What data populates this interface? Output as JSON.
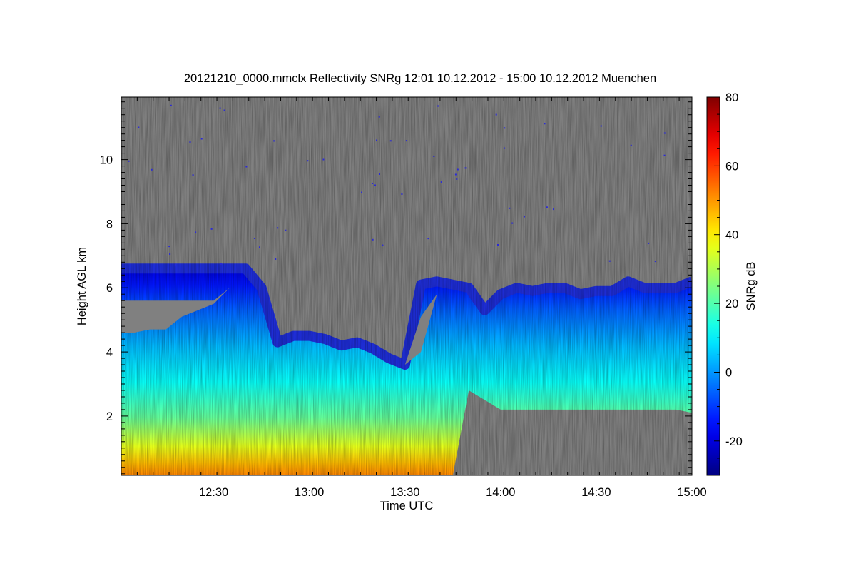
{
  "chart_data": {
    "type": "heatmap",
    "title": "20121210_0000.mmclx Reflectivity SNRg   12:01 10.12.2012 - 15:00 10.12.2012 Muenchen",
    "xlabel": "Time UTC",
    "ylabel": "Height AGL km",
    "x_start": "12:01",
    "x_end": "15:00",
    "xlim": [
      "12:01",
      "15:00"
    ],
    "x_ticks": [
      "12:30",
      "13:00",
      "13:30",
      "14:00",
      "14:30",
      "15:00"
    ],
    "ylim": [
      0.15,
      11.95
    ],
    "y_ticks": [
      2,
      4,
      6,
      8,
      10
    ],
    "y_tick_labels": [
      "2",
      "4",
      "6",
      "8",
      "10"
    ],
    "background_color": "#808080",
    "colorbar": {
      "label": "SNRg dB",
      "range": [
        -30,
        80
      ],
      "ticks": [
        -20,
        0,
        20,
        40,
        60,
        80
      ],
      "tick_labels": [
        "-20",
        "0",
        "20",
        "40",
        "60",
        "80"
      ],
      "colormap": "jet"
    },
    "echo_top_km": {
      "x": [
        "12:01",
        "12:10",
        "12:20",
        "12:30",
        "12:40",
        "12:45",
        "12:50",
        "12:55",
        "13:00",
        "13:05",
        "13:10",
        "13:15",
        "13:20",
        "13:25",
        "13:30",
        "13:35",
        "13:40",
        "13:45",
        "13:50",
        "13:55",
        "14:00",
        "14:05",
        "14:10",
        "14:15",
        "14:20",
        "14:25",
        "14:30",
        "14:35",
        "14:40",
        "14:45",
        "14:50",
        "14:55",
        "15:00"
      ],
      "y": [
        6.6,
        6.6,
        6.6,
        6.6,
        6.6,
        6.0,
        4.3,
        4.5,
        4.5,
        4.4,
        4.2,
        4.3,
        4.1,
        3.8,
        3.6,
        6.1,
        6.2,
        6.1,
        6.0,
        5.3,
        5.8,
        6.0,
        5.9,
        6.0,
        6.0,
        5.8,
        5.9,
        5.9,
        6.2,
        6.0,
        6.0,
        6.0,
        6.2
      ]
    },
    "cloud_base_km": {
      "x": [
        "12:01",
        "12:10",
        "12:20",
        "12:30",
        "12:40",
        "12:45",
        "12:50",
        "12:55",
        "13:00",
        "13:05",
        "13:10",
        "13:15",
        "13:20",
        "13:25",
        "13:30",
        "13:35",
        "13:40",
        "13:45",
        "13:50",
        "13:55",
        "14:00",
        "14:05",
        "14:10",
        "14:15",
        "14:20",
        "14:25",
        "14:30",
        "14:35",
        "14:40",
        "14:45",
        "14:50",
        "14:55",
        "15:00"
      ],
      "y": [
        0.15,
        0.15,
        0.15,
        0.15,
        0.15,
        0.15,
        0.15,
        0.15,
        0.15,
        0.15,
        0.15,
        0.15,
        0.15,
        0.15,
        0.15,
        0.15,
        0.15,
        0.15,
        2.8,
        2.5,
        2.2,
        2.2,
        2.2,
        2.2,
        2.2,
        2.2,
        2.2,
        2.2,
        2.2,
        2.2,
        2.2,
        2.2,
        2.1
      ]
    },
    "gap_lower_boundary_km": {
      "x": [
        "12:01",
        "12:05",
        "12:10",
        "12:15",
        "12:20",
        "12:25",
        "12:30",
        "12:35",
        "12:40",
        "12:45",
        "12:50",
        "12:55",
        "13:00",
        "13:05",
        "13:10",
        "13:15",
        "13:20",
        "13:25",
        "13:30",
        "13:35",
        "13:40",
        "13:45"
      ],
      "y": [
        4.6,
        4.6,
        4.7,
        4.7,
        5.1,
        5.3,
        5.5,
        6.0,
        6.3,
        6.5,
        4.3,
        4.2,
        4.2,
        4.2,
        4.0,
        3.8,
        3.8,
        3.9,
        3.6,
        4.0,
        5.8,
        6.0
      ]
    }
  }
}
